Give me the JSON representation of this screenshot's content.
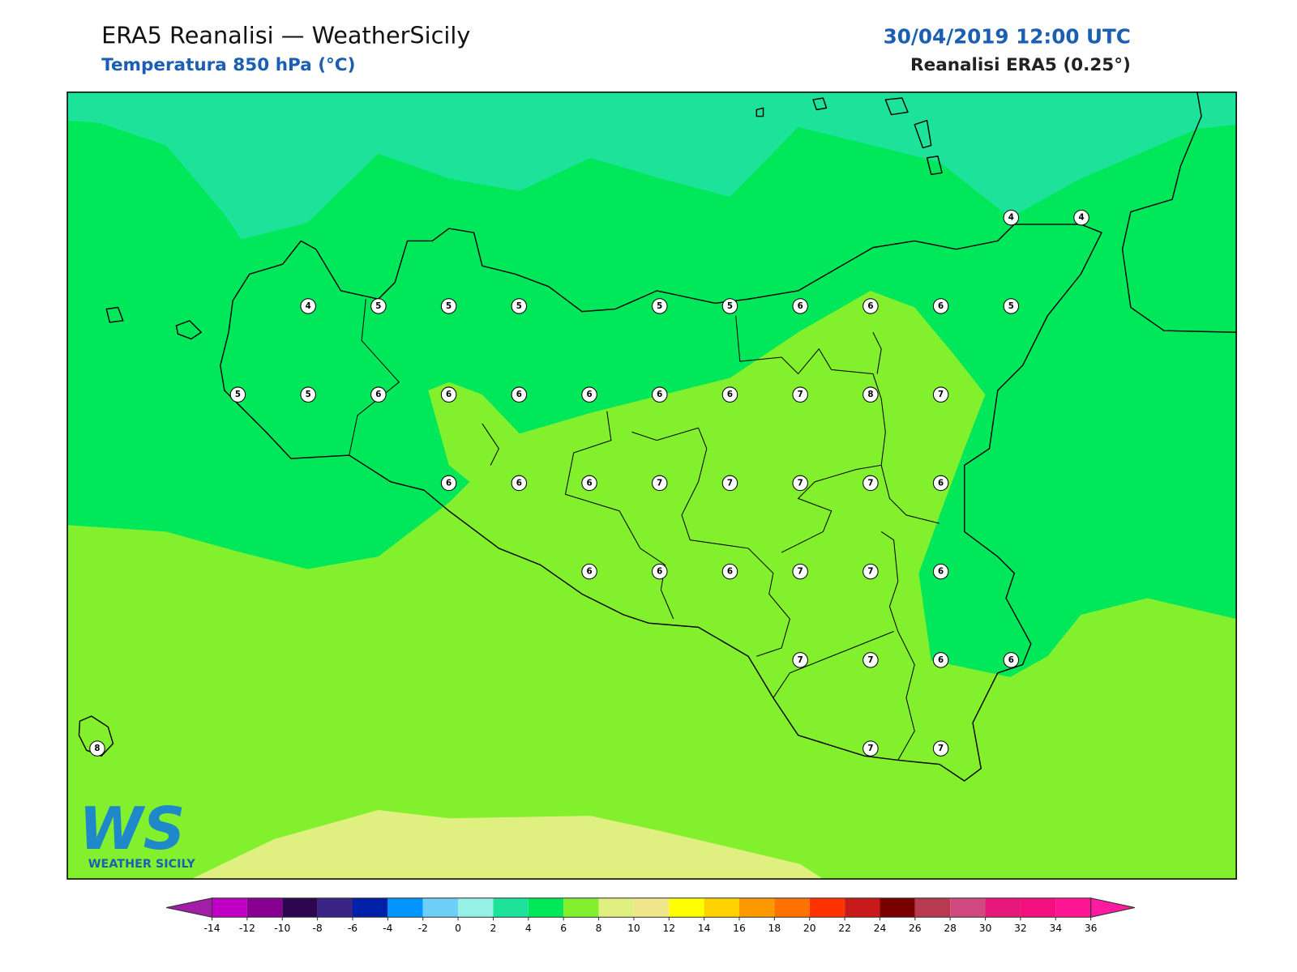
{
  "header": {
    "title": "ERA5 Reanalisi — WeatherSicily",
    "subtitle": "Temperatura 850 hPa (°C)",
    "datetime": "30/04/2019 12:00 UTC",
    "source": "Reanalisi ERA5 (0.25°)"
  },
  "grid_values": [
    [
      null,
      null,
      null,
      null,
      null,
      null,
      null,
      null,
      null,
      null,
      null,
      null,
      null,
      4,
      4
    ],
    [
      null,
      null,
      null,
      4,
      5,
      5,
      5,
      null,
      5,
      5,
      6,
      6,
      6,
      5,
      null
    ],
    [
      null,
      null,
      5,
      5,
      6,
      6,
      6,
      6,
      6,
      6,
      7,
      8,
      7,
      null,
      null
    ],
    [
      null,
      null,
      null,
      null,
      null,
      6,
      6,
      6,
      7,
      7,
      7,
      7,
      6,
      null,
      null
    ],
    [
      null,
      null,
      null,
      null,
      null,
      null,
      null,
      6,
      6,
      6,
      7,
      7,
      6,
      null,
      null
    ],
    [
      null,
      null,
      null,
      null,
      null,
      null,
      null,
      null,
      null,
      null,
      7,
      7,
      6,
      6,
      null
    ],
    [
      8,
      null,
      null,
      null,
      null,
      null,
      null,
      null,
      null,
      null,
      null,
      7,
      7,
      null,
      null
    ]
  ],
  "colorbar": {
    "ticks": [
      -14,
      -12,
      -10,
      -8,
      -6,
      -4,
      -2,
      0,
      2,
      4,
      6,
      8,
      10,
      12,
      14,
      16,
      18,
      20,
      22,
      24,
      26,
      28,
      30,
      32,
      34,
      36
    ],
    "colors": [
      "#a21ea6",
      "#c000c4",
      "#870090",
      "#2e0650",
      "#3a2586",
      "#0020a8",
      "#0095ff",
      "#6dcff6",
      "#97f0e6",
      "#1de39a",
      "#00e85a",
      "#83f02e",
      "#e0f080",
      "#f0e68c",
      "#ffff00",
      "#ffd200",
      "#ff9900",
      "#ff7200",
      "#ff3300",
      "#c81a1a",
      "#7a0000",
      "#b83a50",
      "#d04a80",
      "#e6187a",
      "#f4107e",
      "#ff1493",
      "#ff1aa0"
    ]
  },
  "logo": {
    "mark": "WS",
    "text": "WEATHER SICILY"
  }
}
